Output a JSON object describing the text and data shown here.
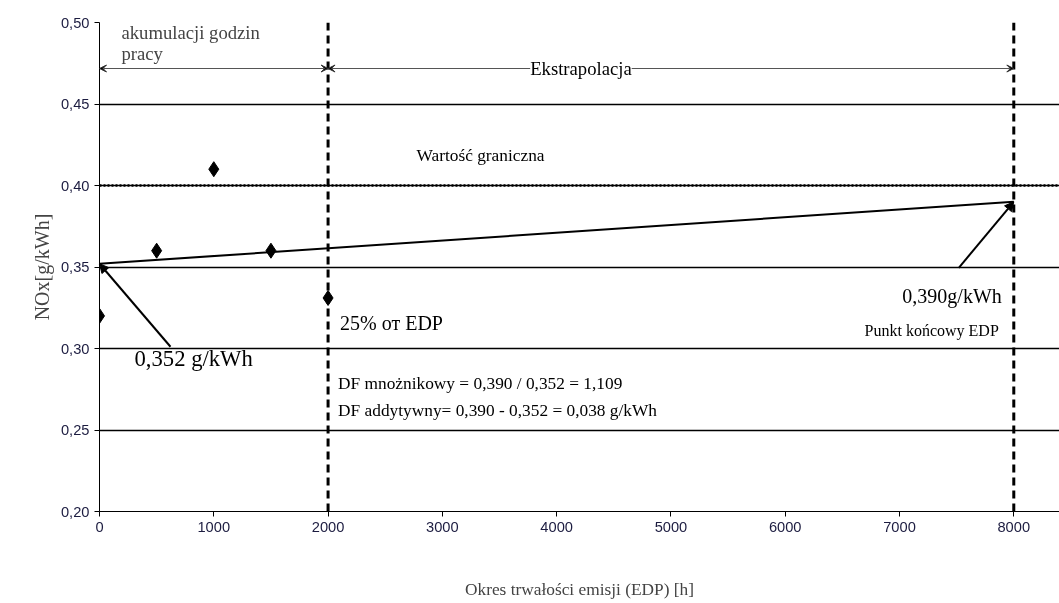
{
  "chart_data": {
    "type": "scatter",
    "xlabel": "Okres trwałości emisji (EDP) [h]",
    "ylabel": "NOx[g/kWh]",
    "x": [
      0,
      500,
      1000,
      1500,
      2000
    ],
    "series": [
      {
        "color": "#000000",
        "marker": "diamond",
        "values": [
          0.32,
          0.36,
          0.41,
          0.36,
          0.331
        ]
      },
      {
        "type": "line",
        "color": "#000000",
        "x": [
          0,
          8000
        ],
        "values": [
          0.352,
          0.39
        ]
      }
    ],
    "xlim": [
      0,
      8400
    ],
    "ylim": [
      0.2,
      0.5
    ],
    "xticks": [
      0,
      1000,
      2000,
      3000,
      4000,
      5000,
      6000,
      7000,
      8000
    ],
    "yticks": [
      {
        "value": 0.2,
        "label": "0,20"
      },
      {
        "value": 0.25,
        "label": "0,25"
      },
      {
        "value": 0.3,
        "label": "0,30"
      },
      {
        "value": 0.35,
        "label": "0,35"
      },
      {
        "value": 0.4,
        "label": "0,40"
      },
      {
        "value": 0.45,
        "label": "0,45"
      },
      {
        "value": 0.5,
        "label": "0,50"
      }
    ],
    "grid": "y",
    "ref_lines": [
      {
        "axis": "y",
        "value": 0.4,
        "label": "Wartość graniczna",
        "line_style": "dotted",
        "color": "#000000"
      },
      {
        "axis": "x",
        "value": 2000,
        "label": "25% от EDP",
        "line_style": "dashed",
        "color": "#000000"
      },
      {
        "axis": "x",
        "value": 8000,
        "label": "Punkt końcowy EDP",
        "line_style": "dashed",
        "color": "#000000"
      }
    ],
    "annotations": [
      "akumulacji godzin\npracy",
      "Ekstrapolacja",
      {
        "text": "0,352 g/kWh",
        "x": 0,
        "y": 0.352
      },
      {
        "text": "0,390g/kWh",
        "x": 8000,
        "y": 0.39
      },
      "DF mnożnikowy = 0,390 / 0,352 = 1,109",
      "DF addytywny= 0,390 - 0,352 = 0,038 g/kWh"
    ]
  }
}
